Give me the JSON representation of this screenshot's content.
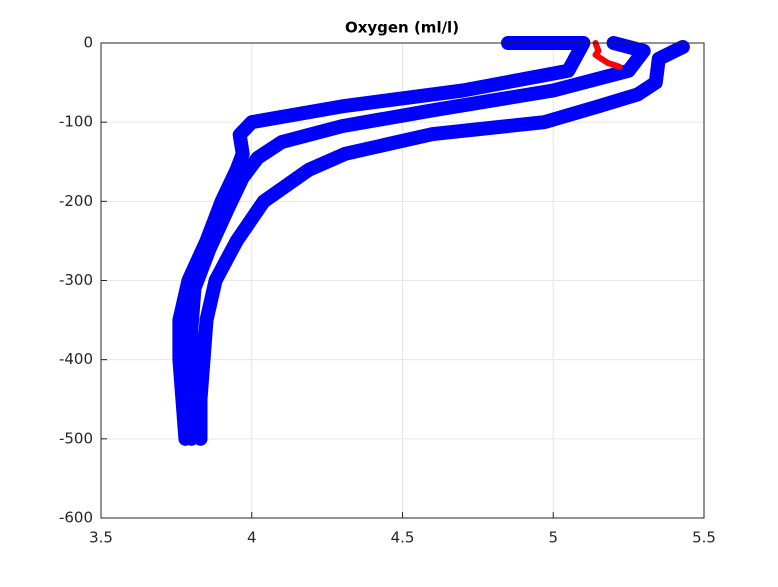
{
  "chart_data": {
    "type": "line",
    "title": "Oxygen (ml/l)",
    "xlim": [
      3.5,
      5.5
    ],
    "xticks": [
      3.5,
      4,
      4.5,
      5,
      5.5
    ],
    "ylim": [
      -600,
      0
    ],
    "yticks": [
      -600,
      -500,
      -400,
      -300,
      -200,
      -100,
      0
    ],
    "grid": true,
    "series": [
      {
        "color": "#0000ff",
        "x": [
          4.85,
          5.1,
          5.05,
          4.7,
          4.3,
          4.0,
          3.96,
          3.97,
          3.95,
          3.9,
          3.85,
          3.79,
          3.76,
          3.76,
          3.77,
          3.78
        ],
        "y": [
          0,
          0,
          -35,
          -60,
          -80,
          -100,
          -116,
          -140,
          -160,
          -200,
          -250,
          -300,
          -350,
          -400,
          -450,
          -500
        ]
      },
      {
        "color": "#0000ff",
        "x": [
          5.2,
          5.3,
          5.25,
          5.0,
          4.6,
          4.3,
          4.1,
          4.02,
          3.97,
          3.92,
          3.86,
          3.81,
          3.8,
          3.8,
          3.8,
          3.8
        ],
        "y": [
          0,
          -10,
          -35,
          -60,
          -85,
          -105,
          -125,
          -145,
          -170,
          -210,
          -260,
          -310,
          -360,
          -410,
          -460,
          -500
        ]
      },
      {
        "color": "#0000ff",
        "x": [
          5.43,
          5.35,
          5.34,
          5.28,
          5.15,
          4.97,
          4.6,
          4.31,
          4.19,
          4.04,
          3.95,
          3.88,
          3.85,
          3.84,
          3.83,
          3.83
        ],
        "y": [
          -5,
          -20,
          -50,
          -65,
          -80,
          -100,
          -115,
          -140,
          -160,
          -200,
          -250,
          -300,
          -350,
          -400,
          -450,
          -500
        ]
      },
      {
        "color": "#ff0000",
        "x": [
          5.14,
          5.15,
          5.14,
          5.18,
          5.22
        ],
        "y": [
          0,
          -10,
          -15,
          -25,
          -30
        ]
      }
    ]
  }
}
